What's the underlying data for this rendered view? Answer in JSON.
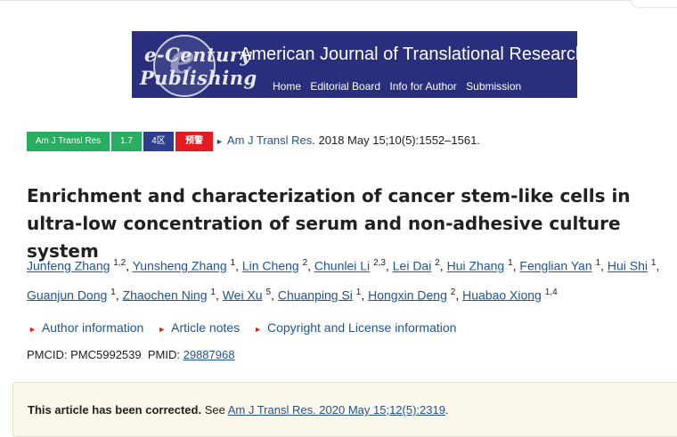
{
  "banner": {
    "logo_line1": "e-Century",
    "logo_line2": "Publishing",
    "logo_letter": "e",
    "journal_name": "American Journal of Translational Research",
    "nav": [
      "Home",
      "Editorial Board",
      "Info for Author",
      "Submission"
    ]
  },
  "badges": [
    "Am J Transl Res",
    "1.7",
    "4区",
    "预警"
  ],
  "citation": {
    "journal_link": "Am J Transl Res",
    "rest": ". 2018 May 15;10(5):1552–1561."
  },
  "title": "Enrichment and characterization of cancer stem-like cells in ultra-low concentration of serum and non-adhesive culture system",
  "authors": [
    {
      "name": "Junfeng Zhang",
      "aff": "1,2"
    },
    {
      "name": "Yunsheng Zhang",
      "aff": "1"
    },
    {
      "name": "Lin Cheng",
      "aff": "2"
    },
    {
      "name": "Chunlei Li",
      "aff": "2,3"
    },
    {
      "name": "Lei Dai",
      "aff": "2"
    },
    {
      "name": "Hui Zhang",
      "aff": "1"
    },
    {
      "name": "Fenglian Yan",
      "aff": "1"
    },
    {
      "name": "Hui Shi",
      "aff": "1"
    },
    {
      "name": "Guanjun Dong",
      "aff": "1"
    },
    {
      "name": "Zhaochen Ning",
      "aff": "1"
    },
    {
      "name": "Wei Xu",
      "aff": "5"
    },
    {
      "name": "Chuanping Si",
      "aff": "1"
    },
    {
      "name": "Hongxin Deng",
      "aff": "2"
    },
    {
      "name": "Huabao Xiong",
      "aff": "1,4"
    }
  ],
  "info_links": [
    "Author information",
    "Article notes",
    "Copyright and License information"
  ],
  "ids": {
    "pmcid_label": "PMCID: PMC5992539",
    "pmid_label": "PMID: ",
    "pmid_value": "29887968"
  },
  "notice": {
    "bold": "This article has been corrected.",
    "see": " See ",
    "link": "Am J Transl Res. 2020 May 15;12(5):2319",
    "end": "."
  },
  "colors": {
    "banner_bg": "#2a2f7d",
    "badge_green": "#27ae60",
    "badge_blue": "#2c3e8c",
    "badge_red": "#e31b23",
    "link": "#205493",
    "notice_bg": "#fbf7ea"
  }
}
